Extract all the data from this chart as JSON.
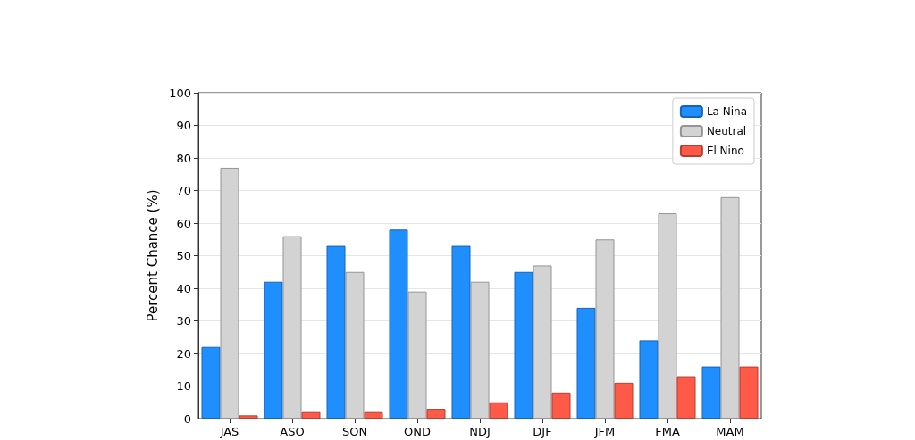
{
  "chart_data": {
    "type": "bar",
    "ylabel": "Percent Chance (%)",
    "categories": [
      "JAS",
      "ASO",
      "SON",
      "OND",
      "NDJ",
      "DJF",
      "JFM",
      "FMA",
      "MAM"
    ],
    "series": [
      {
        "name": "La Nina",
        "color": "#1f8fff",
        "values": [
          22,
          42,
          53,
          58,
          53,
          45,
          34,
          24,
          16
        ]
      },
      {
        "name": "Neutral",
        "color": "#d3d3d3",
        "values": [
          77,
          56,
          45,
          39,
          42,
          47,
          55,
          63,
          68
        ]
      },
      {
        "name": "El Nino",
        "color": "#ff5a48",
        "values": [
          1,
          2,
          2,
          3,
          5,
          8,
          11,
          13,
          16
        ]
      }
    ],
    "ylim": [
      0,
      100
    ],
    "yticks": [
      0,
      10,
      20,
      30,
      40,
      50,
      60,
      70,
      80,
      90,
      100
    ],
    "grid": "y",
    "legend": "top right"
  }
}
